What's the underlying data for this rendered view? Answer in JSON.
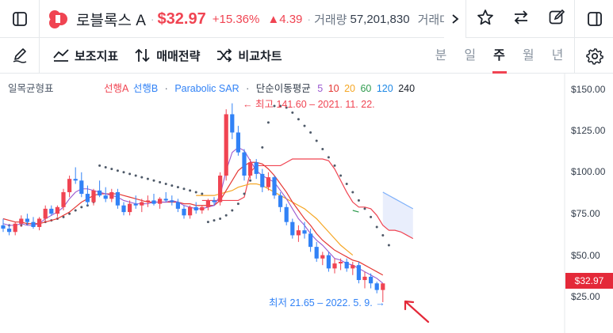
{
  "header": {
    "name": "로블록스 A",
    "price": "$32.97",
    "change_pct": "+15.36%",
    "change_abs": "▲4.39",
    "volume_label": "거래량",
    "volume": "57,201,830",
    "amount_label": "거래대금"
  },
  "toolbar": {
    "indicators_label": "보조지표",
    "strategy_label": "매매전략",
    "compare_label": "비교차트",
    "periods": [
      "분",
      "일",
      "주",
      "월",
      "년"
    ],
    "active_period": "주"
  },
  "legend": {
    "ichimoku": "일목균형표",
    "span_a": "선행A",
    "span_b": "선행B",
    "sar": "Parabolic SAR",
    "sma_label": "단순이동평균",
    "sma_periods": [
      "5",
      "10",
      "20",
      "60",
      "120",
      "240"
    ]
  },
  "annotations": {
    "high": "← 최고 141.60 – 2021. 11. 22.",
    "low": "최저 21.65 – 2022. 5. 9. →"
  },
  "colors": {
    "up": "#f04452",
    "down": "#3182f6",
    "span_a": "#f04452",
    "span_b": "#3182f6",
    "sar": "#4e5968",
    "sma5": "#9b59d0",
    "sma10": "#e53935",
    "sma20": "#f5a623",
    "sma60": "#2e9b4e",
    "sma120": "#1e88e5",
    "sma240": "#191f28"
  },
  "chart_data": {
    "type": "candlestick",
    "yticks": [
      "$150.00",
      "$125.00",
      "$100.00",
      "$75.00",
      "$50.00",
      "$25.00"
    ],
    "ylim": [
      17.5,
      158
    ],
    "current_price": "$32.97",
    "candles": [
      [
        68,
        72,
        64,
        66
      ],
      [
        66,
        68,
        62,
        64
      ],
      [
        64,
        70,
        62,
        69
      ],
      [
        69,
        74,
        67,
        72
      ],
      [
        72,
        75,
        68,
        70
      ],
      [
        70,
        73,
        66,
        67
      ],
      [
        67,
        73,
        65,
        72
      ],
      [
        72,
        80,
        70,
        78
      ],
      [
        78,
        80,
        74,
        75
      ],
      [
        75,
        80,
        73,
        79
      ],
      [
        79,
        90,
        77,
        88
      ],
      [
        88,
        98,
        85,
        96
      ],
      [
        96,
        103,
        93,
        95
      ],
      [
        95,
        100,
        85,
        87
      ],
      [
        87,
        92,
        80,
        82
      ],
      [
        82,
        90,
        80,
        89
      ],
      [
        89,
        95,
        85,
        86
      ],
      [
        86,
        91,
        82,
        84
      ],
      [
        84,
        90,
        82,
        88
      ],
      [
        88,
        90,
        78,
        80
      ],
      [
        80,
        82,
        74,
        76
      ],
      [
        76,
        83,
        74,
        81
      ],
      [
        81,
        86,
        78,
        80
      ],
      [
        80,
        84,
        76,
        82
      ],
      [
        82,
        86,
        79,
        83
      ],
      [
        83,
        87,
        80,
        81
      ],
      [
        81,
        85,
        78,
        84
      ],
      [
        84,
        88,
        82,
        83
      ],
      [
        83,
        86,
        80,
        82
      ],
      [
        82,
        84,
        76,
        78
      ],
      [
        78,
        80,
        72,
        74
      ],
      [
        74,
        80,
        72,
        79
      ],
      [
        79,
        82,
        75,
        77
      ],
      [
        77,
        80,
        75,
        79
      ],
      [
        79,
        84,
        77,
        83
      ],
      [
        83,
        85,
        80,
        82
      ],
      [
        82,
        100,
        80,
        98
      ],
      [
        98,
        138,
        95,
        135
      ],
      [
        135,
        141.6,
        120,
        124
      ],
      [
        124,
        128,
        110,
        112
      ],
      [
        112,
        114,
        95,
        98
      ],
      [
        98,
        108,
        96,
        106
      ],
      [
        106,
        108,
        96,
        99
      ],
      [
        99,
        102,
        88,
        91
      ],
      [
        91,
        100,
        89,
        97
      ],
      [
        97,
        98,
        84,
        86
      ],
      [
        86,
        88,
        76,
        79
      ],
      [
        79,
        81,
        68,
        70
      ],
      [
        70,
        72,
        60,
        62
      ],
      [
        62,
        68,
        58,
        65
      ],
      [
        65,
        70,
        60,
        63
      ],
      [
        63,
        66,
        52,
        55
      ],
      [
        55,
        58,
        46,
        48
      ],
      [
        48,
        52,
        44,
        50
      ],
      [
        50,
        52,
        40,
        42
      ],
      [
        42,
        48,
        39,
        45
      ],
      [
        45,
        48,
        41,
        46
      ],
      [
        46,
        48,
        40,
        42
      ],
      [
        42,
        46,
        38,
        44
      ],
      [
        44,
        46,
        33,
        35
      ],
      [
        35,
        40,
        30,
        37
      ],
      [
        37,
        39,
        30,
        33
      ],
      [
        33,
        34,
        27,
        29
      ],
      [
        29,
        33,
        21.65,
        32.97
      ]
    ],
    "sar": [
      68,
      68,
      68,
      69,
      69,
      70,
      70,
      71,
      72,
      73,
      75,
      77,
      79,
      80,
      82,
      104,
      103,
      102,
      101,
      100,
      99,
      98,
      97,
      96,
      95,
      94,
      93,
      92,
      91,
      90,
      89,
      88,
      87,
      70,
      71,
      72,
      74,
      77,
      81,
      87,
      95,
      105,
      115,
      130,
      140,
      140,
      139,
      136,
      132,
      128,
      124,
      119,
      114,
      109,
      104,
      98,
      93,
      88,
      83,
      78,
      73,
      67,
      62,
      56
    ],
    "sar_start": 1,
    "sma5": [
      69,
      68,
      68,
      69,
      68,
      68,
      69,
      72,
      74,
      76,
      79,
      84,
      88,
      90,
      90,
      89,
      88,
      87,
      86,
      85,
      83,
      82,
      81,
      81,
      81,
      82,
      82,
      82,
      83,
      82,
      80,
      79,
      78,
      78,
      79,
      80,
      86,
      101,
      112,
      115,
      113,
      107,
      101,
      98,
      96,
      94,
      89,
      84,
      78,
      72,
      68,
      63,
      59,
      56,
      52,
      48,
      47,
      45,
      44,
      42,
      40,
      38,
      36,
      33
    ],
    "sma10": [
      72,
      71,
      70,
      70,
      69,
      69,
      69,
      70,
      71,
      72,
      74,
      76,
      79,
      82,
      84,
      86,
      87,
      87,
      87,
      87,
      86,
      85,
      84,
      83,
      82,
      82,
      82,
      82,
      82,
      82,
      81,
      81,
      80,
      80,
      80,
      80,
      83,
      89,
      95,
      101,
      104,
      106,
      106,
      105,
      102,
      98,
      93,
      88,
      82,
      77,
      72,
      68,
      63,
      59,
      56,
      53,
      51,
      49,
      47,
      46,
      44,
      42,
      40,
      38
    ],
    "sma20": [
      null,
      null,
      null,
      null,
      null,
      null,
      null,
      null,
      null,
      null,
      null,
      null,
      null,
      null,
      null,
      null,
      null,
      null,
      null,
      null,
      null,
      null,
      null,
      null,
      null,
      null,
      null,
      null,
      null,
      null,
      null,
      null,
      86,
      86,
      86,
      86,
      87,
      88,
      89,
      91,
      92,
      93,
      93,
      92,
      90,
      88,
      86,
      84,
      82,
      80,
      78,
      75,
      72,
      68,
      64,
      60,
      56,
      53,
      50
    ],
    "sma60": [
      null,
      null,
      null,
      null,
      null,
      null,
      null,
      null,
      null,
      null,
      null,
      null,
      null,
      null,
      null,
      null,
      null,
      null,
      null,
      null,
      null,
      null,
      null,
      null,
      null,
      null,
      null,
      null,
      null,
      null,
      null,
      null,
      null,
      null,
      null,
      null,
      null,
      null,
      null,
      null,
      null,
      null,
      null,
      null,
      null,
      null,
      null,
      null,
      null,
      null,
      null,
      null,
      null,
      null,
      null,
      null,
      null,
      null,
      77,
      76
    ],
    "span_a": [
      83,
      83,
      83,
      83,
      83,
      83,
      83,
      85,
      100,
      104,
      104,
      104,
      104,
      104,
      106,
      108,
      108,
      108,
      108,
      108,
      108,
      107,
      102,
      95,
      88,
      82,
      79,
      79,
      78,
      74,
      68,
      65,
      65,
      64,
      62,
      60
    ],
    "span_b": [
      null,
      null,
      null,
      null,
      null,
      null,
      null,
      null,
      null,
      null,
      null,
      null,
      null,
      null,
      null,
      null,
      null,
      null,
      null,
      null,
      null,
      null,
      null,
      null,
      null,
      null,
      null,
      null,
      null,
      null,
      88,
      86,
      84,
      82,
      80,
      78
    ],
    "cloud_start": 33
  }
}
